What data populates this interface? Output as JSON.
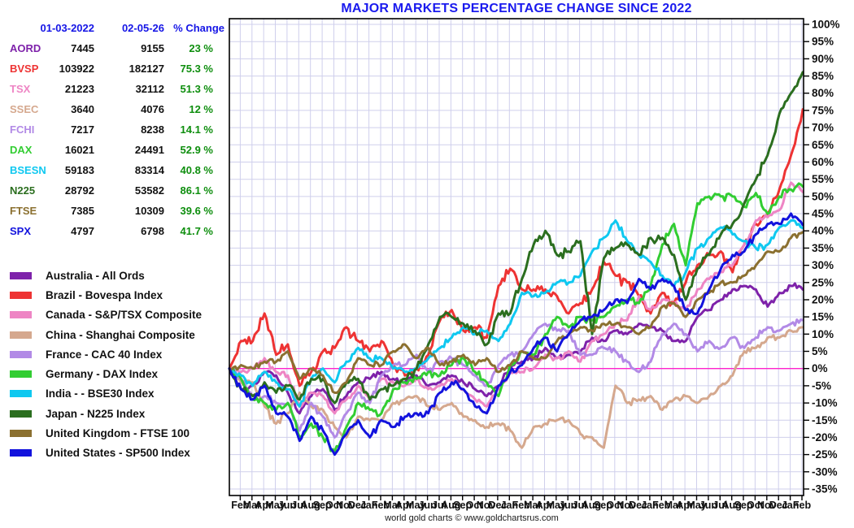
{
  "title": "MAJOR MARKETS PERCENTAGE CHANGE SINCE 2022",
  "footer": "world gold charts © www.goldchartsrus.com",
  "colors": {
    "title_blue": "#1A1AEE",
    "table_header_blue": "#1515E6",
    "change_green": "#0E8E0E",
    "grid": "#CFCFEC",
    "zero_line": "#FF22CC",
    "plot_border": "#000000",
    "axis_text": "#111111"
  },
  "table": {
    "headers": [
      "01-03-2022",
      "02-05-26",
      "% Change"
    ],
    "rows": [
      {
        "symbol": "AORD",
        "start": "7445",
        "current": "9155",
        "change": "23 %"
      },
      {
        "symbol": "BVSP",
        "start": "103922",
        "current": "182127",
        "change": "75.3 %"
      },
      {
        "symbol": "TSX",
        "start": "21223",
        "current": "32112",
        "change": "51.3 %"
      },
      {
        "symbol": "SSEC",
        "start": "3640",
        "current": "4076",
        "change": "12 %"
      },
      {
        "symbol": "FCHI",
        "start": "7217",
        "current": "8238",
        "change": "14.1 %"
      },
      {
        "symbol": "DAX",
        "start": "16021",
        "current": "24491",
        "change": "52.9 %"
      },
      {
        "symbol": "BSESN",
        "start": "59183",
        "current": "83314",
        "change": "40.8 %"
      },
      {
        "symbol": "N225",
        "start": "28792",
        "current": "53582",
        "change": "86.1 %"
      },
      {
        "symbol": "FTSE",
        "start": "7385",
        "current": "10309",
        "change": "39.6 %"
      },
      {
        "symbol": "SPX",
        "start": "4797",
        "current": "6798",
        "change": "41.7 %"
      }
    ]
  },
  "chart_data": {
    "type": "line",
    "x_unit": "months since 2022-01-03",
    "x_labels": [
      "Feb",
      "Mar",
      "Apr",
      "May",
      "Jun",
      "Jul",
      "Aug",
      "Sep",
      "Oct",
      "Nov",
      "Dec",
      "Jan",
      "Feb",
      "Mar",
      "Apr",
      "May",
      "Jun",
      "Jul",
      "Aug",
      "Sep",
      "Oct",
      "Nov",
      "Dec",
      "Jan",
      "Feb",
      "Mar",
      "Apr",
      "May",
      "Jun",
      "Jul",
      "Aug",
      "Sep",
      "Oct",
      "Nov",
      "Dec",
      "Jan",
      "Feb",
      "Mar",
      "Apr",
      "May",
      "Jun",
      "Jul",
      "Aug",
      "Sep",
      "Oct",
      "Nov",
      "Dec",
      "Jan",
      "Feb"
    ],
    "axis": {
      "y_max": 100,
      "y_min": -35,
      "y_step": 5,
      "y_tick_suffix": "%",
      "grid": true,
      "zero_line": true
    },
    "legend_position": "left",
    "series": [
      {
        "id": "AORD",
        "legend": "Australia - All Ords",
        "color": "#7E22AA",
        "jitter": 0.9,
        "values": [
          0,
          -6,
          -5,
          -1,
          -2,
          -7,
          -13,
          -8,
          -6,
          -12,
          -8,
          -4,
          -3,
          -1,
          -3,
          -4,
          -2,
          -5,
          -4,
          -2,
          -4,
          -6,
          -8,
          -5,
          0,
          2,
          3,
          6,
          3,
          4,
          5,
          9,
          8,
          11,
          10,
          13,
          12,
          11,
          8,
          8,
          15,
          17,
          20,
          23,
          24,
          23,
          18,
          22,
          24,
          23
        ]
      },
      {
        "id": "BVSP",
        "legend": "Brazil - Bovespa Index",
        "color": "#EE3333",
        "jitter": 1.5,
        "values": [
          0,
          8,
          8,
          16,
          4,
          7,
          -5,
          -1,
          5,
          6,
          12,
          8,
          5,
          8,
          1,
          -2,
          0,
          4,
          14,
          17,
          11,
          12,
          9,
          24,
          29,
          23,
          23,
          23,
          21,
          16,
          19,
          23,
          31,
          27,
          25,
          21,
          16,
          22,
          19,
          25,
          30,
          33,
          34,
          28,
          36,
          42,
          45,
          52,
          62,
          75.3
        ]
      },
      {
        "id": "TSX",
        "legend": "Canada - S&P/TSX Composite",
        "color": "#EE85C4",
        "jitter": 0.9,
        "values": [
          0,
          -1,
          0,
          3,
          -1,
          -2,
          -11,
          -7,
          -8,
          -13,
          -9,
          -5,
          -9,
          -3,
          -4,
          -5,
          -3,
          -6,
          -5,
          -3,
          -6,
          -9,
          -11,
          -6,
          -1,
          -1,
          0,
          4,
          3,
          5,
          2,
          8,
          10,
          13,
          14,
          21,
          17,
          20,
          19,
          17,
          23,
          26,
          28,
          30,
          36,
          43,
          44,
          46,
          54,
          51.3
        ]
      },
      {
        "id": "SSEC",
        "legend": "China - Shanghai Composite",
        "color": "#D5A88E",
        "jitter": 0.9,
        "values": [
          0,
          -4,
          -4,
          -11,
          -16,
          -13,
          -7,
          -11,
          -12,
          -17,
          -20,
          -14,
          -15,
          -15,
          -10,
          -9,
          -8,
          -11,
          -12,
          -10,
          -14,
          -15,
          -17,
          -16,
          -18,
          -23,
          -17,
          -16,
          -15,
          -15,
          -19,
          -20,
          -23,
          -5,
          -10,
          -9,
          -8,
          -12,
          -9,
          -8,
          -10,
          -8,
          -5,
          -2,
          5,
          6,
          9,
          9,
          11,
          12
        ]
      },
      {
        "id": "FCHI",
        "legend": "France - CAC 40 Index",
        "color": "#B28AE6",
        "jitter": 1.0,
        "values": [
          0,
          -3,
          -8,
          -8,
          -10,
          -10,
          -18,
          -10,
          -14,
          -20,
          -13,
          -7,
          -10,
          -2,
          1,
          1,
          4,
          -1,
          2,
          3,
          1,
          -2,
          -5,
          1,
          4,
          5,
          10,
          13,
          11,
          11,
          4,
          4,
          6,
          5,
          2,
          -1,
          2,
          10,
          13,
          10,
          5,
          8,
          6,
          9,
          6,
          9,
          12,
          11,
          13,
          14.1
        ]
      },
      {
        "id": "DAX",
        "legend": "Germany - DAX Index",
        "color": "#32CD32",
        "jitter": 1.2,
        "values": [
          0,
          -3,
          -9,
          -10,
          -12,
          -10,
          -20,
          -16,
          -20,
          -24,
          -17,
          -10,
          -12,
          -13,
          -6,
          -4,
          -3,
          -1,
          -2,
          1,
          3,
          -1,
          -4,
          -8,
          1,
          5,
          4,
          10,
          15,
          12,
          15,
          14,
          15,
          18,
          20,
          19,
          24,
          36,
          42,
          30,
          48,
          50,
          50,
          50,
          47,
          51,
          45,
          50,
          52,
          52.9
        ]
      },
      {
        "id": "BSESN",
        "legend": "India -  - BSE30 Index",
        "color": "#0FC8F0",
        "jitter": 1.0,
        "values": [
          0,
          -2,
          -5,
          -1,
          -4,
          -6,
          -11,
          -3,
          0,
          -4,
          2,
          6,
          3,
          3,
          0,
          -1,
          0,
          3,
          6,
          9,
          12,
          10,
          11,
          8,
          13,
          22,
          21,
          22,
          25,
          25,
          27,
          34,
          38,
          43,
          37,
          33,
          31,
          27,
          24,
          28,
          35,
          38,
          41,
          39,
          37,
          35,
          36,
          41,
          43,
          40.8
        ]
      },
      {
        "id": "N225",
        "legend": "Japan - N225 Index",
        "color": "#2B6E1F",
        "jitter": 1.3,
        "values": [
          0,
          -6,
          -8,
          -4,
          -7,
          -5,
          -9,
          -3,
          -3,
          -10,
          -4,
          -3,
          -9,
          -6,
          -5,
          -3,
          0,
          7,
          15,
          15,
          13,
          11,
          7,
          16,
          16,
          26,
          36,
          40,
          33,
          34,
          37,
          10,
          32,
          35,
          36,
          33,
          38,
          38,
          33,
          20,
          29,
          33,
          39,
          42,
          48,
          55,
          62,
          74,
          80,
          86.1
        ]
      },
      {
        "id": "FTSE",
        "legend": "United Kingdom - FTSE 100",
        "color": "#8B7030",
        "jitter": 0.8,
        "values": [
          0,
          1,
          0,
          2,
          2,
          5,
          -3,
          0,
          -2,
          -7,
          -4,
          3,
          1,
          1,
          5,
          7,
          3,
          6,
          1,
          2,
          4,
          1,
          3,
          -1,
          1,
          5,
          3,
          3,
          8,
          10,
          12,
          11,
          13,
          13,
          12,
          10,
          12,
          18,
          19,
          15,
          20,
          22,
          25,
          25,
          27,
          30,
          34,
          34,
          38,
          39.6
        ]
      },
      {
        "id": "SPX",
        "legend": "United States - SP500 Index",
        "color": "#1212DD",
        "jitter": 1.0,
        "values": [
          0,
          -6,
          -9,
          -5,
          -13,
          -14,
          -21,
          -14,
          -18,
          -25,
          -19,
          -15,
          -20,
          -15,
          -17,
          -14,
          -13,
          -13,
          -7,
          -4,
          -6,
          -11,
          -13,
          -5,
          -1,
          1,
          6,
          9,
          5,
          10,
          14,
          15,
          17,
          20,
          19,
          26,
          23,
          26,
          24,
          17,
          16,
          23,
          29,
          33,
          34,
          39,
          42,
          42,
          45,
          41.7
        ]
      }
    ]
  }
}
